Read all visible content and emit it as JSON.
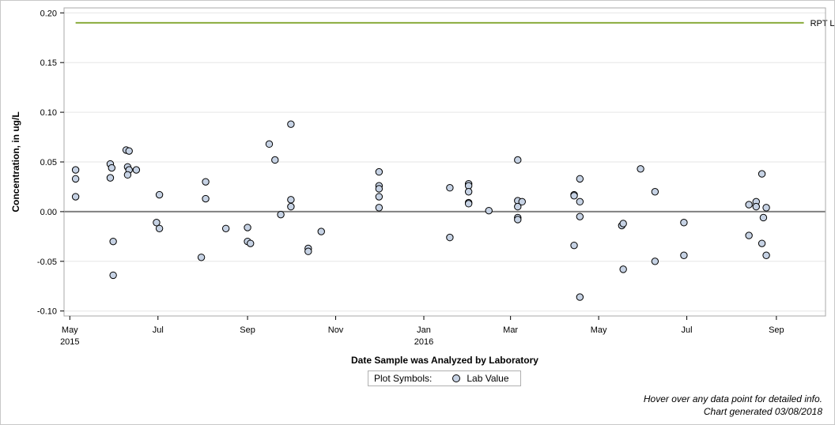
{
  "chart_data": {
    "type": "scatter",
    "ylabel": "Concentration, in ug/L",
    "xlabel": "Date Sample was Analyzed by Laboratory",
    "ylim": [
      -0.105,
      0.205
    ],
    "xlim": [
      "2015-04-27",
      "2016-10-05"
    ],
    "y_ticks": [
      {
        "value": 0.2,
        "label": "0.20"
      },
      {
        "value": 0.15,
        "label": "0.15"
      },
      {
        "value": 0.1,
        "label": "0.10"
      },
      {
        "value": 0.05,
        "label": "0.05"
      },
      {
        "value": 0.0,
        "label": "0.00"
      },
      {
        "value": -0.05,
        "label": "-0.05"
      },
      {
        "value": -0.1,
        "label": "-0.10"
      }
    ],
    "x_ticks": [
      {
        "date": "2015-05-01",
        "label": "May",
        "sublabel": "2015"
      },
      {
        "date": "2015-07-01",
        "label": "Jul",
        "sublabel": ""
      },
      {
        "date": "2015-09-01",
        "label": "Sep",
        "sublabel": ""
      },
      {
        "date": "2015-11-01",
        "label": "Nov",
        "sublabel": ""
      },
      {
        "date": "2016-01-01",
        "label": "Jan",
        "sublabel": "2016"
      },
      {
        "date": "2016-03-01",
        "label": "Mar",
        "sublabel": ""
      },
      {
        "date": "2016-05-01",
        "label": "May",
        "sublabel": ""
      },
      {
        "date": "2016-07-01",
        "label": "Jul",
        "sublabel": ""
      },
      {
        "date": "2016-09-01",
        "label": "Sep",
        "sublabel": ""
      }
    ],
    "grid": true,
    "zero_line": 0,
    "reference_line": {
      "name": "RPT Level",
      "value": 0.19,
      "color": "#8aab3c",
      "start": "2015-05-05",
      "end": "2016-09-20"
    },
    "series": [
      {
        "name": "Lab Value",
        "marker_fill": "#c6d2e4",
        "marker_edge": "#000000",
        "points": [
          {
            "x": "2015-05-05",
            "y": 0.042
          },
          {
            "x": "2015-05-05",
            "y": 0.033
          },
          {
            "x": "2015-05-05",
            "y": 0.015
          },
          {
            "x": "2015-05-29",
            "y": 0.048
          },
          {
            "x": "2015-05-29",
            "y": 0.034
          },
          {
            "x": "2015-05-30",
            "y": 0.044
          },
          {
            "x": "2015-05-31",
            "y": -0.03
          },
          {
            "x": "2015-05-31",
            "y": -0.064
          },
          {
            "x": "2015-06-09",
            "y": 0.062
          },
          {
            "x": "2015-06-11",
            "y": 0.061
          },
          {
            "x": "2015-06-10",
            "y": 0.045
          },
          {
            "x": "2015-06-11",
            "y": 0.042
          },
          {
            "x": "2015-06-10",
            "y": 0.037
          },
          {
            "x": "2015-06-16",
            "y": 0.042
          },
          {
            "x": "2015-06-30",
            "y": -0.011
          },
          {
            "x": "2015-07-02",
            "y": 0.017
          },
          {
            "x": "2015-07-02",
            "y": -0.017
          },
          {
            "x": "2015-07-31",
            "y": -0.046
          },
          {
            "x": "2015-08-03",
            "y": 0.03
          },
          {
            "x": "2015-08-03",
            "y": 0.013
          },
          {
            "x": "2015-08-17",
            "y": -0.017
          },
          {
            "x": "2015-09-01",
            "y": -0.016
          },
          {
            "x": "2015-09-01",
            "y": -0.03
          },
          {
            "x": "2015-09-03",
            "y": -0.032
          },
          {
            "x": "2015-09-16",
            "y": 0.068
          },
          {
            "x": "2015-09-20",
            "y": 0.052
          },
          {
            "x": "2015-09-24",
            "y": -0.003
          },
          {
            "x": "2015-10-01",
            "y": 0.088
          },
          {
            "x": "2015-10-01",
            "y": 0.012
          },
          {
            "x": "2015-10-01",
            "y": 0.005
          },
          {
            "x": "2015-10-13",
            "y": -0.037
          },
          {
            "x": "2015-10-13",
            "y": -0.04
          },
          {
            "x": "2015-10-22",
            "y": -0.02
          },
          {
            "x": "2015-12-01",
            "y": 0.04
          },
          {
            "x": "2015-12-01",
            "y": 0.026
          },
          {
            "x": "2015-12-01",
            "y": 0.023
          },
          {
            "x": "2015-12-01",
            "y": 0.015
          },
          {
            "x": "2015-12-01",
            "y": 0.004
          },
          {
            "x": "2016-01-19",
            "y": 0.024
          },
          {
            "x": "2016-01-19",
            "y": -0.026
          },
          {
            "x": "2016-02-01",
            "y": 0.028
          },
          {
            "x": "2016-02-01",
            "y": 0.026
          },
          {
            "x": "2016-02-01",
            "y": 0.02
          },
          {
            "x": "2016-02-01",
            "y": 0.009
          },
          {
            "x": "2016-02-01",
            "y": 0.008
          },
          {
            "x": "2016-02-15",
            "y": 0.001
          },
          {
            "x": "2016-03-06",
            "y": 0.052
          },
          {
            "x": "2016-03-06",
            "y": 0.011
          },
          {
            "x": "2016-03-06",
            "y": 0.005
          },
          {
            "x": "2016-03-06",
            "y": -0.006
          },
          {
            "x": "2016-03-06",
            "y": -0.008
          },
          {
            "x": "2016-03-09",
            "y": 0.01
          },
          {
            "x": "2016-04-14",
            "y": 0.017
          },
          {
            "x": "2016-04-14",
            "y": 0.016
          },
          {
            "x": "2016-04-14",
            "y": -0.034
          },
          {
            "x": "2016-04-18",
            "y": 0.033
          },
          {
            "x": "2016-04-18",
            "y": 0.01
          },
          {
            "x": "2016-04-18",
            "y": -0.005
          },
          {
            "x": "2016-04-18",
            "y": -0.086
          },
          {
            "x": "2016-05-17",
            "y": -0.014
          },
          {
            "x": "2016-05-18",
            "y": -0.012
          },
          {
            "x": "2016-05-18",
            "y": -0.058
          },
          {
            "x": "2016-05-30",
            "y": 0.043
          },
          {
            "x": "2016-06-09",
            "y": 0.02
          },
          {
            "x": "2016-06-09",
            "y": -0.05
          },
          {
            "x": "2016-06-29",
            "y": -0.011
          },
          {
            "x": "2016-06-29",
            "y": -0.044
          },
          {
            "x": "2016-08-13",
            "y": 0.007
          },
          {
            "x": "2016-08-13",
            "y": -0.024
          },
          {
            "x": "2016-08-18",
            "y": 0.01
          },
          {
            "x": "2016-08-18",
            "y": 0.005
          },
          {
            "x": "2016-08-22",
            "y": 0.038
          },
          {
            "x": "2016-08-22",
            "y": -0.032
          },
          {
            "x": "2016-08-23",
            "y": -0.006
          },
          {
            "x": "2016-08-25",
            "y": 0.004
          },
          {
            "x": "2016-08-25",
            "y": -0.044
          }
        ]
      }
    ]
  },
  "legend": {
    "title": "Plot Symbols:",
    "entry": "Lab Value"
  },
  "footnotes": {
    "line1": "Hover over any data point for detailed info.",
    "line2": "Chart generated 03/08/2018"
  }
}
